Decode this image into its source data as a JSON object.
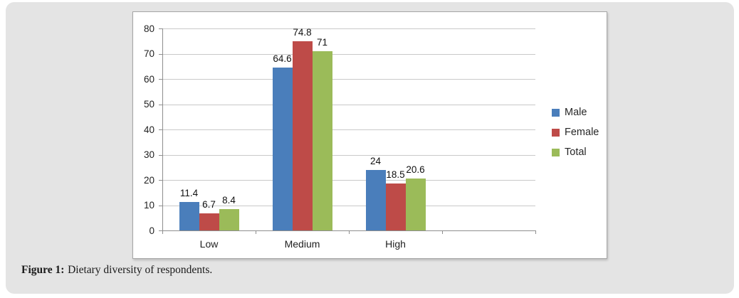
{
  "figure": {
    "caption": {
      "label": "Figure 1:",
      "text": "Dietary diversity of respondents."
    }
  },
  "chart_data": {
    "type": "bar",
    "title": "",
    "xlabel": "",
    "ylabel": "",
    "categories": [
      "Low",
      "Medium",
      "High"
    ],
    "series": [
      {
        "name": "Male",
        "color": "#4A7EBB",
        "values": [
          11.4,
          64.6,
          24
        ]
      },
      {
        "name": "Female",
        "color": "#BE4B48",
        "values": [
          6.7,
          74.8,
          18.5
        ]
      },
      {
        "name": "Total",
        "color": "#9BBB59",
        "values": [
          8.4,
          71,
          20.6
        ]
      }
    ],
    "ylim": [
      0,
      80
    ],
    "ytick_step": 10,
    "ytick_labels": [
      "0",
      "10",
      "20",
      "30",
      "40",
      "50",
      "60",
      "70",
      "80"
    ],
    "grid": true,
    "legend_position": "right",
    "data_labels": "outside-end",
    "extra_empty_category_slot": true
  }
}
